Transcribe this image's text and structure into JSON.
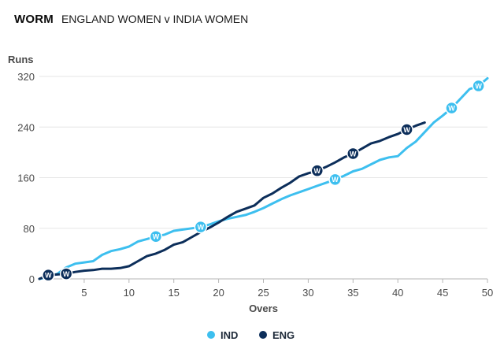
{
  "header": {
    "title": "WORM",
    "subtitle": "ENGLAND WOMEN v INDIA WOMEN"
  },
  "colors": {
    "ind": "#3dbfef",
    "eng": "#0c2e5a",
    "grid": "#e6e6e6",
    "axis": "#b5b5b5"
  },
  "chart_data": {
    "type": "line",
    "title": "WORM",
    "subtitle": "ENGLAND WOMEN v INDIA WOMEN",
    "xlabel": "Overs",
    "ylabel": "Runs",
    "xlim": [
      0,
      50
    ],
    "ylim": [
      0,
      320
    ],
    "x_ticks": [
      5,
      10,
      15,
      20,
      25,
      30,
      35,
      40,
      45,
      50
    ],
    "y_ticks": [
      0,
      80,
      160,
      240,
      320
    ],
    "legend_position": "bottom-center",
    "wicket_marker": "W",
    "series": [
      {
        "key": "ind",
        "name": "IND",
        "x": [
          0,
          1,
          2,
          3,
          4,
          5,
          6,
          7,
          8,
          9,
          10,
          11,
          12,
          13,
          14,
          15,
          16,
          17,
          18,
          19,
          20,
          21,
          22,
          23,
          24,
          25,
          26,
          27,
          28,
          29,
          30,
          31,
          32,
          33,
          34,
          35,
          36,
          37,
          38,
          39,
          40,
          41,
          42,
          43,
          44,
          45,
          46,
          47,
          48,
          49,
          50
        ],
        "y": [
          0,
          3,
          8,
          18,
          24,
          26,
          28,
          38,
          44,
          47,
          51,
          59,
          63,
          67,
          70,
          76,
          78,
          80,
          82,
          86,
          91,
          95,
          98,
          101,
          106,
          112,
          119,
          126,
          132,
          137,
          142,
          147,
          152,
          157,
          163,
          170,
          174,
          181,
          188,
          192,
          194,
          207,
          217,
          232,
          247,
          258,
          270,
          285,
          300,
          305,
          317
        ],
        "wickets_at_over": [
          13,
          18,
          33,
          46,
          49
        ]
      },
      {
        "key": "eng",
        "name": "ENG",
        "x": [
          0,
          1,
          2,
          3,
          4,
          5,
          6,
          7,
          8,
          9,
          10,
          11,
          12,
          13,
          14,
          15,
          16,
          17,
          18,
          19,
          20,
          21,
          22,
          23,
          24,
          25,
          26,
          27,
          28,
          29,
          30,
          31,
          32,
          33,
          34,
          35,
          36,
          37,
          38,
          39,
          40,
          41,
          42,
          43
        ],
        "y": [
          0,
          6,
          7,
          8,
          11,
          13,
          14,
          16,
          16,
          17,
          20,
          28,
          36,
          40,
          46,
          54,
          58,
          66,
          74,
          81,
          89,
          98,
          106,
          111,
          116,
          128,
          135,
          144,
          152,
          162,
          167,
          171,
          177,
          184,
          192,
          198,
          206,
          214,
          218,
          224,
          229,
          236,
          242,
          247
        ],
        "wickets_at_over": [
          1,
          3,
          31,
          35,
          41
        ]
      }
    ]
  }
}
